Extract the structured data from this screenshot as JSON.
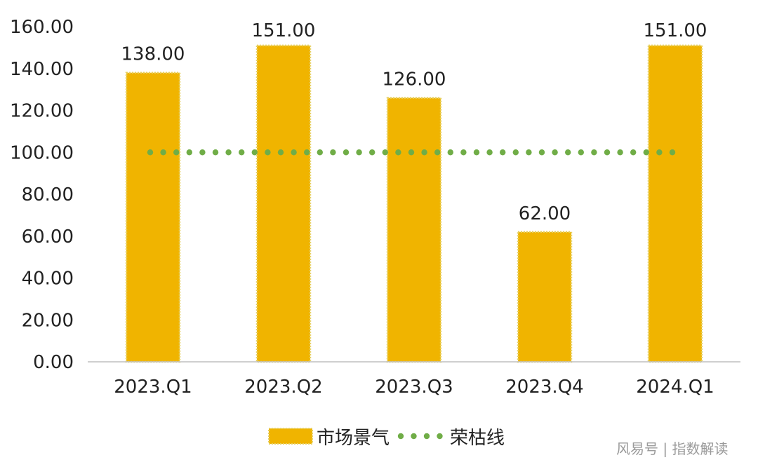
{
  "chart_data": {
    "type": "bar",
    "categories": [
      "2023.Q1",
      "2023.Q2",
      "2023.Q3",
      "2023.Q4",
      "2024.Q1"
    ],
    "series": [
      {
        "name": "市场景气",
        "type": "bar",
        "values": [
          138,
          151,
          126,
          62,
          151
        ],
        "color": "#F0B400"
      },
      {
        "name": "荣枯线",
        "type": "line",
        "style": "dotted",
        "values": [
          100,
          100,
          100,
          100,
          100
        ],
        "color": "#70AD47"
      }
    ],
    "data_labels": [
      "138.00",
      "151.00",
      "126.00",
      "62.00",
      "151.00"
    ],
    "y_ticks": [
      "0.00",
      "20.00",
      "40.00",
      "60.00",
      "80.00",
      "100.00",
      "120.00",
      "140.00",
      "160.00"
    ],
    "ylim": [
      0,
      160
    ],
    "grid": false,
    "legend_position": "bottom",
    "title": "",
    "xlabel": "",
    "ylabel": ""
  },
  "watermark": "风易号 | 指数解读"
}
